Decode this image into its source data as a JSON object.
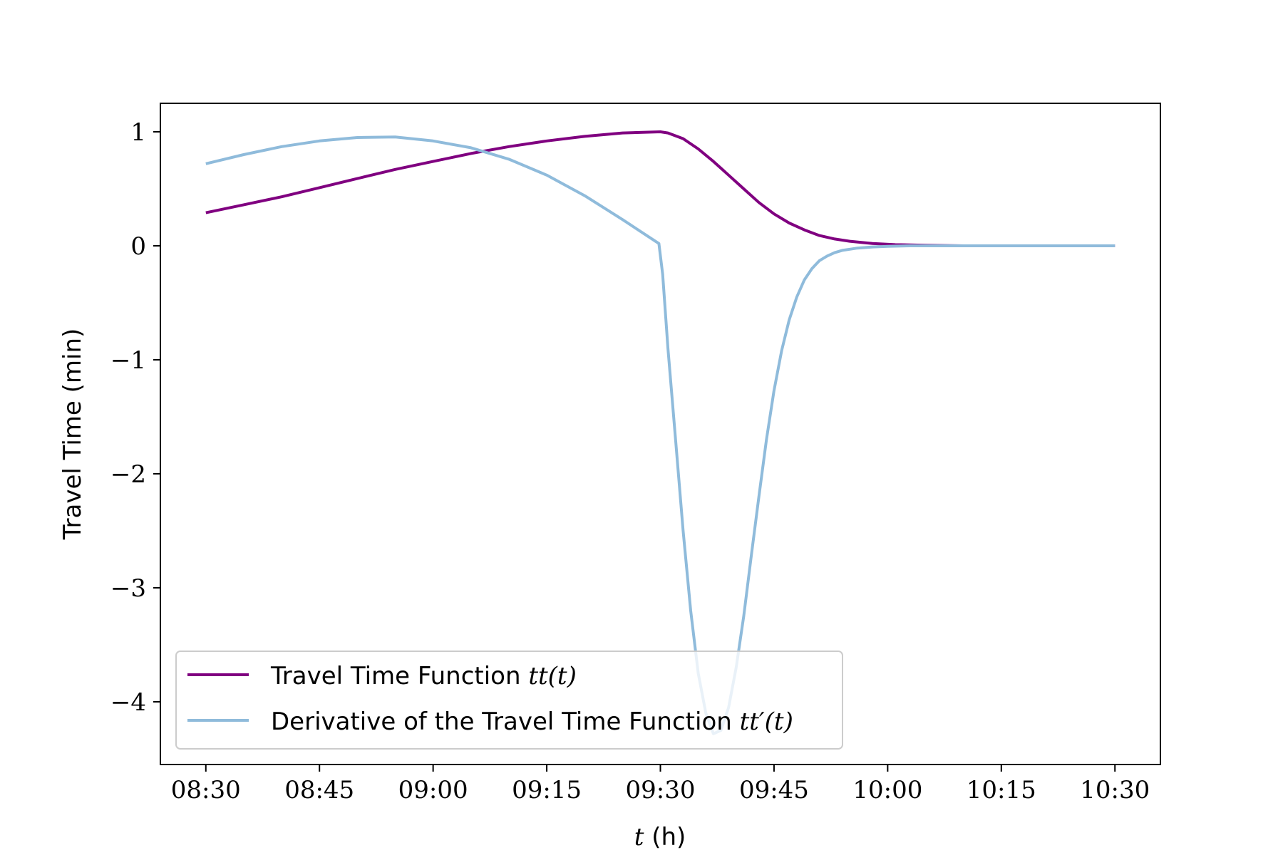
{
  "chart_data": {
    "type": "line",
    "title": "",
    "xlabel_var": "t",
    "xlabel_unit": " (h)",
    "ylabel": "Travel Time (min)",
    "xlim": [
      -6,
      126
    ],
    "ylim": [
      -4.55,
      1.25
    ],
    "grid": false,
    "legend_placement": "lower-left",
    "x_ticks": [
      {
        "value": 0,
        "label": "08:30"
      },
      {
        "value": 15,
        "label": "08:45"
      },
      {
        "value": 30,
        "label": "09:00"
      },
      {
        "value": 45,
        "label": "09:15"
      },
      {
        "value": 60,
        "label": "09:30"
      },
      {
        "value": 75,
        "label": "09:45"
      },
      {
        "value": 90,
        "label": "10:00"
      },
      {
        "value": 105,
        "label": "10:15"
      },
      {
        "value": 120,
        "label": "10:30"
      }
    ],
    "y_ticks": [
      {
        "value": 1,
        "label": "1"
      },
      {
        "value": 0,
        "label": "0"
      },
      {
        "value": -1,
        "label": "−1"
      },
      {
        "value": -2,
        "label": "−2"
      },
      {
        "value": -3,
        "label": "−3"
      },
      {
        "value": -4,
        "label": "−4"
      }
    ],
    "series": [
      {
        "name": "Travel Time Function ",
        "name_math": "tt(t)",
        "color": "#800080",
        "x": [
          0,
          5,
          10,
          15,
          20,
          25,
          30,
          35,
          40,
          45,
          50,
          55,
          60,
          61,
          63,
          65,
          67,
          69,
          71,
          73,
          75,
          77,
          79,
          81,
          83,
          85,
          88,
          91,
          95,
          100,
          110,
          120
        ],
        "y": [
          0.29,
          0.36,
          0.43,
          0.51,
          0.59,
          0.67,
          0.74,
          0.81,
          0.87,
          0.92,
          0.96,
          0.99,
          1.0,
          0.99,
          0.94,
          0.85,
          0.74,
          0.62,
          0.5,
          0.38,
          0.28,
          0.2,
          0.14,
          0.09,
          0.06,
          0.04,
          0.02,
          0.01,
          0.005,
          0.0,
          0.0,
          0.0
        ]
      },
      {
        "name": "Derivative of the Travel Time Function ",
        "name_math": "tt′(t)",
        "color": "#8fbbdb",
        "x": [
          0,
          5,
          10,
          15,
          20,
          25,
          30,
          35,
          40,
          45,
          50,
          55,
          59.8,
          60.3,
          61,
          62,
          63,
          64,
          65,
          66,
          67,
          68,
          69,
          70,
          71,
          72,
          73,
          74,
          75,
          76,
          77,
          78,
          79,
          80,
          81,
          82,
          83,
          84,
          85,
          86,
          88,
          90,
          93,
          96,
          100,
          110,
          120
        ],
        "y": [
          0.72,
          0.8,
          0.87,
          0.92,
          0.95,
          0.955,
          0.92,
          0.86,
          0.76,
          0.62,
          0.44,
          0.23,
          0.02,
          -0.25,
          -0.9,
          -1.7,
          -2.5,
          -3.2,
          -3.75,
          -4.1,
          -4.28,
          -4.25,
          -4.05,
          -3.7,
          -3.25,
          -2.72,
          -2.2,
          -1.7,
          -1.27,
          -0.92,
          -0.65,
          -0.45,
          -0.3,
          -0.2,
          -0.13,
          -0.09,
          -0.06,
          -0.04,
          -0.03,
          -0.02,
          -0.01,
          -0.005,
          0.0,
          0.0,
          0.0,
          0.0,
          0.0
        ]
      }
    ]
  }
}
